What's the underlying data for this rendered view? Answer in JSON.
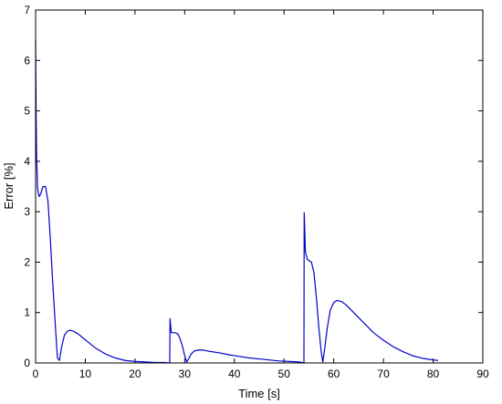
{
  "chart_data": {
    "type": "line",
    "title": "",
    "xlabel": "Time [s]",
    "ylabel": "Error [%]",
    "xlim": [
      0,
      90
    ],
    "ylim": [
      0,
      7
    ],
    "xticks": [
      0,
      10,
      20,
      30,
      40,
      50,
      60,
      70,
      80,
      90
    ],
    "yticks": [
      0,
      1,
      2,
      3,
      4,
      5,
      6,
      7
    ],
    "grid": false,
    "legend": "none",
    "series": [
      {
        "color": "#0000cc",
        "x": [
          0,
          0.1,
          0.2,
          0.4,
          0.7,
          1.0,
          1.5,
          2.0,
          2.5,
          3.0,
          3.5,
          4.0,
          4.4,
          4.8,
          5.2,
          5.8,
          6.4,
          7.0,
          7.6,
          8.5,
          9.5,
          10.5,
          12,
          14,
          16,
          18,
          20,
          22,
          24,
          26,
          27.0,
          27.05,
          27.3,
          28,
          28.6,
          29.0,
          29.5,
          30.0,
          30.4,
          30.8,
          31.3,
          32,
          33,
          34,
          35,
          37,
          39,
          41,
          43,
          45,
          47,
          49,
          51,
          53,
          54.0,
          54.05,
          54.3,
          54.7,
          55.5,
          56.0,
          56.5,
          57.0,
          57.5,
          57.8,
          58.2,
          58.7,
          59.3,
          60.0,
          60.7,
          61.5,
          62.5,
          64,
          66,
          68,
          70,
          72,
          74,
          76,
          78,
          80,
          81
        ],
        "y": [
          6.4,
          5.0,
          4.1,
          3.45,
          3.3,
          3.35,
          3.5,
          3.5,
          3.2,
          2.4,
          1.5,
          0.7,
          0.1,
          0.05,
          0.3,
          0.55,
          0.63,
          0.65,
          0.63,
          0.58,
          0.5,
          0.42,
          0.3,
          0.18,
          0.1,
          0.05,
          0.03,
          0.02,
          0.01,
          0.01,
          0.0,
          0.88,
          0.6,
          0.6,
          0.58,
          0.5,
          0.35,
          0.15,
          0.02,
          0.08,
          0.18,
          0.24,
          0.26,
          0.25,
          0.23,
          0.2,
          0.16,
          0.13,
          0.1,
          0.08,
          0.06,
          0.04,
          0.03,
          0.02,
          0.0,
          2.98,
          2.2,
          2.05,
          2.0,
          1.8,
          1.3,
          0.7,
          0.2,
          0.02,
          0.3,
          0.7,
          1.05,
          1.2,
          1.24,
          1.22,
          1.15,
          1.0,
          0.8,
          0.6,
          0.45,
          0.32,
          0.22,
          0.14,
          0.09,
          0.06,
          0.05
        ]
      }
    ]
  }
}
